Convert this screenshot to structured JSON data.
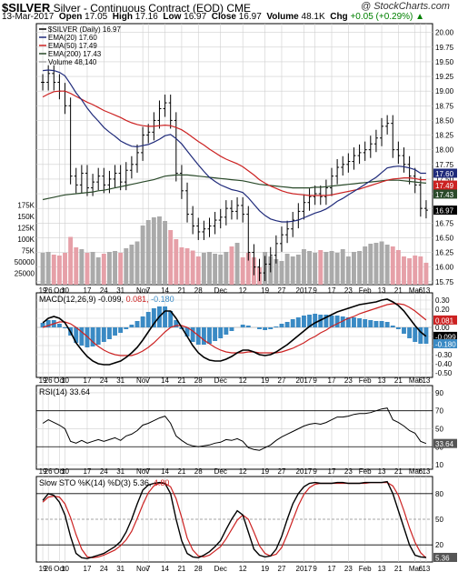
{
  "header": {
    "symbol": "$SILVER",
    "name": "Silver - Continuous Contract (EOD)",
    "exchange": "CME",
    "watermark": "@ StockCharts.com",
    "date": "13-Mar-2017",
    "open_label": "Open",
    "open": "17.05",
    "high_label": "High",
    "high": "17.16",
    "low_label": "Low",
    "low": "16.97",
    "close_label": "Close",
    "close": "16.97",
    "volume_label": "Volume",
    "volume": "48.1K",
    "chg_label": "Chg",
    "chg": "+0.05 (+0.29%)",
    "chg_arrow": "▲"
  },
  "colors": {
    "price_bar": "#000000",
    "ema20": "#1f2a7a",
    "ema50": "#cc2222",
    "ema200": "#2a4a2a",
    "vol_up": "#aaaaaa",
    "vol_down": "#e6a0a8",
    "macd_hist": "#3a8ac4",
    "grid": "#cfcfcf",
    "ref_line": "#888888"
  },
  "chart_data": [
    {
      "panel": "price",
      "type": "ohlc",
      "legend": [
        "$SILVER (Daily) 16.97",
        "EMA(20) 17.60",
        "EMA(50) 17.49",
        "EMA(200) 17.43",
        "Volume 48,140"
      ],
      "yticks": [
        "20.00",
        "19.75",
        "19.50",
        "19.25",
        "19.00",
        "18.75",
        "18.50",
        "18.25",
        "18.00",
        "17.75",
        "17.50",
        "17.25",
        "17.00",
        "16.75",
        "16.50",
        "16.25",
        "16.00",
        "15.75"
      ],
      "ylim": [
        15.7,
        20.15
      ],
      "right_labels": [
        {
          "text": "17.60",
          "value": 17.6,
          "color": "#1f2a7a"
        },
        {
          "text": "17.49",
          "value": 17.49,
          "color": "#cc2222"
        },
        {
          "text": "17.43",
          "value": 17.43,
          "color": "#2a4a2a"
        },
        {
          "text": "16.97",
          "value": 16.97,
          "color": "#000000"
        }
      ],
      "vol_ticks": [
        "175K",
        "150K",
        "125K",
        "100K",
        "75K",
        "50000",
        "25000"
      ],
      "vol_max": 190000,
      "close": [
        19.15,
        19.3,
        19.15,
        19.0,
        18.75,
        17.55,
        17.4,
        17.6,
        17.35,
        17.45,
        17.55,
        17.4,
        17.5,
        17.6,
        17.45,
        17.65,
        17.75,
        17.95,
        18.25,
        18.3,
        18.5,
        18.7,
        18.8,
        18.5,
        17.6,
        17.3,
        16.9,
        16.7,
        16.6,
        16.65,
        16.7,
        16.8,
        16.85,
        17.0,
        16.95,
        17.05,
        16.9,
        16.25,
        16.0,
        15.9,
        16.05,
        16.2,
        16.4,
        16.55,
        16.65,
        16.8,
        16.95,
        17.1,
        17.2,
        17.25,
        17.2,
        17.35,
        17.55,
        17.7,
        17.75,
        17.8,
        17.9,
        17.95,
        18.0,
        18.1,
        18.2,
        18.4,
        18.45,
        18.0,
        17.9,
        17.75,
        17.55,
        17.4,
        17.0,
        16.97
      ],
      "volume": [
        70000,
        72000,
        66000,
        64000,
        70000,
        105000,
        82000,
        78000,
        70000,
        72000,
        60000,
        68000,
        72000,
        74000,
        70000,
        80000,
        88000,
        95000,
        130000,
        142000,
        148000,
        150000,
        140000,
        120000,
        100000,
        82000,
        80000,
        75000,
        62000,
        70000,
        72000,
        68000,
        66000,
        72000,
        84000,
        92000,
        60000,
        70000,
        60000,
        38000,
        72000,
        62000,
        56000,
        52000,
        68000,
        62000,
        66000,
        78000,
        74000,
        70000,
        76000,
        72000,
        74000,
        70000,
        78000,
        62000,
        72000,
        74000,
        84000,
        90000,
        92000,
        95000,
        88000,
        84000,
        76000,
        62000,
        58000,
        64000,
        62000,
        48140
      ],
      "ema20": [
        19.35,
        19.36,
        19.35,
        19.32,
        19.26,
        19.12,
        18.97,
        18.85,
        18.71,
        18.59,
        18.49,
        18.38,
        18.3,
        18.23,
        18.15,
        18.1,
        18.06,
        18.05,
        18.07,
        18.09,
        18.13,
        18.18,
        18.24,
        18.26,
        18.19,
        18.1,
        17.98,
        17.86,
        17.74,
        17.63,
        17.53,
        17.46,
        17.4,
        17.36,
        17.32,
        17.3,
        17.27,
        17.18,
        17.07,
        16.96,
        16.88,
        16.82,
        16.79,
        16.77,
        16.77,
        16.78,
        16.8,
        16.84,
        16.88,
        16.92,
        16.95,
        16.99,
        17.05,
        17.12,
        17.17,
        17.23,
        17.29,
        17.35,
        17.41,
        17.47,
        17.53,
        17.61,
        17.69,
        17.71,
        17.72,
        17.71,
        17.69,
        17.66,
        17.6,
        17.6
      ],
      "ema50": [
        18.9,
        18.95,
        18.99,
        19.0,
        19.0,
        18.96,
        18.91,
        18.86,
        18.81,
        18.77,
        18.72,
        18.67,
        18.63,
        18.59,
        18.55,
        18.5,
        18.46,
        18.43,
        18.41,
        18.4,
        18.4,
        18.41,
        18.42,
        18.41,
        18.38,
        18.34,
        18.28,
        18.21,
        18.14,
        18.08,
        18.01,
        17.95,
        17.89,
        17.84,
        17.8,
        17.76,
        17.71,
        17.64,
        17.57,
        17.49,
        17.43,
        17.38,
        17.34,
        17.3,
        17.27,
        17.25,
        17.24,
        17.23,
        17.22,
        17.22,
        17.22,
        17.22,
        17.23,
        17.25,
        17.27,
        17.29,
        17.31,
        17.33,
        17.36,
        17.39,
        17.42,
        17.45,
        17.48,
        17.5,
        17.51,
        17.52,
        17.52,
        17.51,
        17.49,
        17.49
      ],
      "ema200": [
        17.15,
        17.17,
        17.19,
        17.21,
        17.23,
        17.24,
        17.25,
        17.26,
        17.27,
        17.28,
        17.3,
        17.31,
        17.33,
        17.35,
        17.37,
        17.39,
        17.41,
        17.43,
        17.45,
        17.47,
        17.49,
        17.52,
        17.55,
        17.56,
        17.57,
        17.57,
        17.57,
        17.56,
        17.55,
        17.54,
        17.53,
        17.52,
        17.51,
        17.5,
        17.49,
        17.48,
        17.47,
        17.45,
        17.43,
        17.41,
        17.4,
        17.39,
        17.38,
        17.37,
        17.36,
        17.35,
        17.35,
        17.35,
        17.35,
        17.36,
        17.36,
        17.37,
        17.38,
        17.39,
        17.4,
        17.41,
        17.42,
        17.43,
        17.44,
        17.45,
        17.46,
        17.47,
        17.48,
        17.48,
        17.48,
        17.47,
        17.46,
        17.45,
        17.44,
        17.43
      ]
    },
    {
      "panel": "macd",
      "type": "line+histogram",
      "legend": "MACD(12,26,9) -0.099, 0.081, -0.180",
      "legend_parts": [
        {
          "text": "MACD(12,26,9)",
          "color": "#000000"
        },
        {
          "text": " -0.099,",
          "color": "#000000"
        },
        {
          "text": " 0.081,",
          "color": "#cc2222"
        },
        {
          "text": " -0.180",
          "color": "#3a8ac4"
        }
      ],
      "yticks": [
        "0.30",
        "0.20",
        "0.10",
        "0.00",
        "-0.10",
        "-0.20",
        "-0.30",
        "-0.40",
        "-0.50"
      ],
      "ylim": [
        -0.55,
        0.38
      ],
      "right_labels": [
        {
          "text": "0.081",
          "value": 0.081,
          "color": "#cc2222"
        },
        {
          "text": "-0.099",
          "value": -0.099,
          "color": "#000000"
        },
        {
          "text": "-0.180",
          "value": -0.18,
          "color": "#3a8ac4"
        }
      ],
      "macd": [
        0.05,
        0.1,
        0.12,
        0.1,
        0.05,
        -0.05,
        -0.17,
        -0.25,
        -0.32,
        -0.37,
        -0.4,
        -0.41,
        -0.41,
        -0.39,
        -0.37,
        -0.33,
        -0.28,
        -0.22,
        -0.14,
        -0.05,
        0.04,
        0.12,
        0.18,
        0.18,
        0.1,
        0.0,
        -0.1,
        -0.2,
        -0.28,
        -0.33,
        -0.36,
        -0.37,
        -0.37,
        -0.35,
        -0.32,
        -0.28,
        -0.25,
        -0.25,
        -0.27,
        -0.3,
        -0.31,
        -0.3,
        -0.27,
        -0.23,
        -0.19,
        -0.14,
        -0.09,
        -0.04,
        0.01,
        0.05,
        0.08,
        0.11,
        0.14,
        0.17,
        0.19,
        0.21,
        0.23,
        0.25,
        0.26,
        0.27,
        0.28,
        0.3,
        0.31,
        0.28,
        0.24,
        0.18,
        0.1,
        0.02,
        -0.05,
        -0.099
      ],
      "signal": [
        0.0,
        0.02,
        0.04,
        0.06,
        0.06,
        0.04,
        0.0,
        -0.05,
        -0.1,
        -0.16,
        -0.21,
        -0.25,
        -0.28,
        -0.3,
        -0.31,
        -0.31,
        -0.31,
        -0.29,
        -0.26,
        -0.22,
        -0.17,
        -0.11,
        -0.05,
        0.0,
        0.02,
        0.02,
        0.0,
        -0.04,
        -0.09,
        -0.14,
        -0.18,
        -0.22,
        -0.25,
        -0.27,
        -0.28,
        -0.28,
        -0.28,
        -0.27,
        -0.27,
        -0.28,
        -0.28,
        -0.28,
        -0.28,
        -0.27,
        -0.25,
        -0.23,
        -0.2,
        -0.17,
        -0.13,
        -0.1,
        -0.06,
        -0.03,
        0.01,
        0.04,
        0.07,
        0.1,
        0.12,
        0.15,
        0.17,
        0.19,
        0.21,
        0.23,
        0.25,
        0.26,
        0.26,
        0.25,
        0.22,
        0.18,
        0.13,
        0.081
      ]
    },
    {
      "panel": "rsi",
      "type": "line",
      "legend": "RSI(14) 33.64",
      "yticks": [
        "90",
        "70",
        "50",
        "30",
        "10"
      ],
      "ylim": [
        5,
        98
      ],
      "right_labels": [
        {
          "text": "33.64",
          "value": 33.64,
          "color": "#000000"
        }
      ],
      "values": [
        56,
        60,
        57,
        54,
        50,
        36,
        34,
        37,
        34,
        36,
        38,
        36,
        38,
        40,
        37,
        42,
        44,
        48,
        54,
        56,
        59,
        62,
        64,
        56,
        42,
        37,
        33,
        31,
        30,
        31,
        32,
        34,
        35,
        38,
        37,
        39,
        36,
        29,
        27,
        26,
        29,
        32,
        37,
        41,
        44,
        47,
        50,
        53,
        55,
        56,
        55,
        57,
        60,
        63,
        63,
        64,
        66,
        67,
        67,
        68,
        70,
        72,
        73,
        60,
        57,
        53,
        48,
        45,
        36,
        33.64
      ]
    },
    {
      "panel": "stochastic",
      "type": "line",
      "legend": "Slow STO %K(14) %D(3) 5.36, 4.80",
      "legend_parts": [
        {
          "text": "Slow STO %K(14) %D(3)",
          "color": "#000000"
        },
        {
          "text": " 5.36,",
          "color": "#000000"
        },
        {
          "text": " 4.80",
          "color": "#cc2222"
        }
      ],
      "yticks": [
        "80",
        "50",
        "20"
      ],
      "ylim": [
        0,
        100
      ],
      "right_labels": [
        {
          "text": "5.36",
          "value": 5.36,
          "color": "#000000"
        }
      ],
      "k": [
        72,
        80,
        78,
        70,
        55,
        30,
        10,
        5,
        4,
        6,
        8,
        10,
        14,
        18,
        24,
        35,
        50,
        68,
        84,
        90,
        92,
        93,
        92,
        80,
        50,
        25,
        10,
        6,
        5,
        8,
        12,
        18,
        25,
        38,
        50,
        60,
        55,
        35,
        15,
        8,
        6,
        7,
        15,
        30,
        50,
        68,
        80,
        88,
        92,
        93,
        92,
        92,
        92,
        93,
        93,
        92,
        92,
        92,
        93,
        93,
        93,
        93,
        94,
        80,
        60,
        40,
        20,
        8,
        6,
        5.36
      ],
      "d": [
        70,
        76,
        77,
        76,
        68,
        52,
        32,
        15,
        6,
        5,
        6,
        8,
        11,
        14,
        19,
        26,
        36,
        51,
        67,
        81,
        89,
        92,
        92,
        88,
        74,
        52,
        28,
        14,
        7,
        6,
        8,
        13,
        18,
        27,
        38,
        49,
        55,
        50,
        35,
        19,
        10,
        7,
        9,
        17,
        32,
        49,
        66,
        79,
        87,
        91,
        92,
        92,
        92,
        92,
        92,
        92,
        92,
        92,
        92,
        93,
        93,
        93,
        93,
        89,
        78,
        60,
        40,
        23,
        11,
        4.8
      ]
    }
  ],
  "x_labels": [
    {
      "i": 0,
      "text": "19"
    },
    {
      "i": 1,
      "text": "26"
    },
    {
      "i": 3,
      "text": "Oct"
    },
    {
      "i": 4,
      "text": "10"
    },
    {
      "i": 8,
      "text": "17"
    },
    {
      "i": 11,
      "text": "24"
    },
    {
      "i": 14,
      "text": "31"
    },
    {
      "i": 18,
      "text": "Nov"
    },
    {
      "i": 19,
      "text": "7"
    },
    {
      "i": 22,
      "text": "14"
    },
    {
      "i": 25,
      "text": "21"
    },
    {
      "i": 28,
      "text": "28"
    },
    {
      "i": 32,
      "text": "Dec"
    },
    {
      "i": 36,
      "text": "12"
    },
    {
      "i": 40,
      "text": "19"
    },
    {
      "i": 43,
      "text": "27"
    },
    {
      "i": 47,
      "text": "2017"
    },
    {
      "i": 49,
      "text": "9"
    },
    {
      "i": 52,
      "text": "17"
    },
    {
      "i": 55,
      "text": "23"
    },
    {
      "i": 58,
      "text": "Feb"
    },
    {
      "i": 61,
      "text": "13"
    },
    {
      "i": 64,
      "text": "21"
    },
    {
      "i": 67,
      "text": "Mar"
    },
    {
      "i": 68,
      "text": "6"
    },
    {
      "i": 69,
      "text": "13"
    }
  ]
}
